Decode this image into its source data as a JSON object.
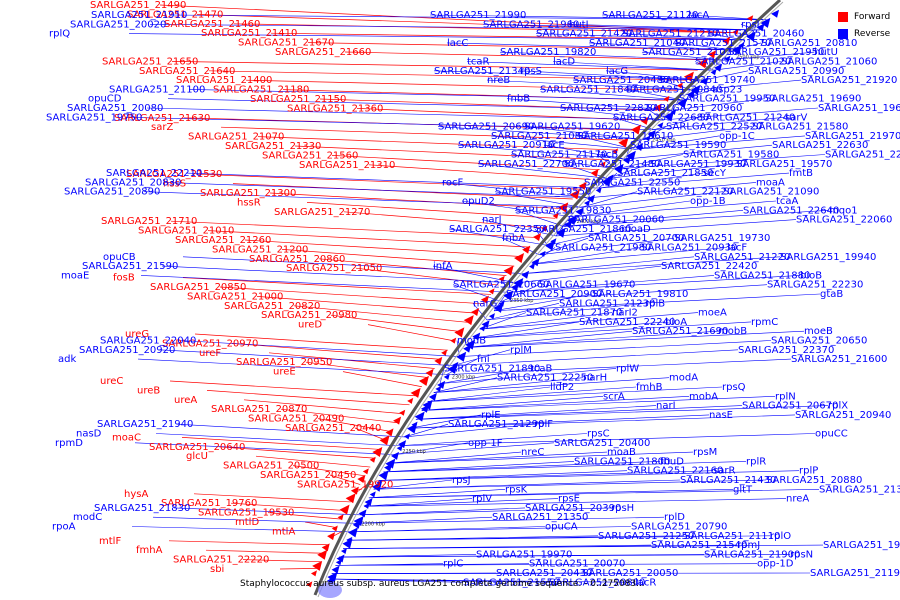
{
  "caption": "Staphylococcus aureus subsp. aureus LGA251 complete genome sequence. - 0..275083...",
  "legend": [
    {
      "label": "Forward",
      "color": "#ff0000"
    },
    {
      "label": "Reverse",
      "color": "#0000ff"
    }
  ],
  "colors": {
    "forward": "#ff0000",
    "reverse": "#0000ff",
    "backbone": "#555555"
  },
  "ticks": [
    "2500 kbp",
    "2450 kbp",
    "2400 kbp",
    "2350 kbp",
    "2300 kbp",
    "2250 kbp",
    "2200 kbp"
  ],
  "forward_labels": [
    "SARLGA251_21490",
    "SARLGA251_21470",
    "SARLGA251_21460",
    "SARLGA251_21410",
    "SARLGA251_21670",
    "SARLGA251_21660",
    "SARLGA251_21650",
    "SARLGA251_21640",
    "SARLGA251_21400",
    "SARLGA251_21180",
    "SARLGA251_21150",
    "SARLGA251_21360",
    "SARLGA251_21630",
    "sarZ",
    "SARLGA251_21070",
    "SARLGA251_21330",
    "SARLGA251_21560",
    "SARLGA251_21310",
    "SARLGA251_21530",
    "hssS",
    "SARLGA251_21300",
    "hssR",
    "SARLGA251_21270",
    "SARLGA251_21710",
    "SARLGA251_21010",
    "SARLGA251_21260",
    "SARLGA251_21200",
    "SARLGA251_20860",
    "SARLGA251_21050",
    "fosB",
    "SARLGA251_20850",
    "SARLGA251_21000",
    "SARLGA251_20820",
    "SARLGA251_20980",
    "ureD",
    "ureG",
    "SARLGA251_20970",
    "ureF",
    "SARLGA251_20950",
    "ureE",
    "ureC",
    "ureB",
    "ureA",
    "SARLGA251_20870",
    "SARLGA251_20490",
    "SARLGA251_20440",
    "moaC",
    "SARLGA251_20640",
    "glcU",
    "SARLGA251_20500",
    "SARLGA251_20450",
    "SARLGA251_19920",
    "hysA",
    "SARLGA251_19760",
    "SARLGA251_19530",
    "mtlD",
    "mtlA",
    "mtlF",
    "fmhA",
    "SARLGA251_22220",
    "sbi"
  ],
  "reverse_labels": [
    "SARLGA251_21990",
    "SARLGA251_21960",
    "SARLGA251_21420",
    "SARLGA251_21040",
    "SARLGA251_21030",
    "SARLGA251_21020",
    "SARLGA251_20990",
    "SARLGA251_21920",
    "SARLGA251_21100",
    "fnbB",
    "SARLGA251_22820",
    "SARLGA251_22680",
    "SARLGA251_22520",
    "opp-1C",
    "SARLGA251_22630",
    "SARLGA251_22300",
    "SARLGA251_22700",
    "SARLGA251_22210",
    "SARLGA251_22550",
    "SARLGA251_22120",
    "opp-1B",
    "SARLGA251_22640",
    "SARLGA251_22060",
    "SARLGA251_22350",
    "fnbA",
    "SARLGA251_21980",
    "opuCB",
    "SARLGA251_22420",
    "SARLGA251_21880",
    "SARLGA251_22230",
    "gtaB",
    "narG",
    "SARLGA251_21870",
    "SARLGA251_22240",
    "SARLGA251_21690",
    "SARLGA251_22040",
    "SARLGA251_22370",
    "SARLGA251_21600",
    "SARLGA251_21890",
    "SARLGA251_22250",
    "lldP2",
    "scrA",
    "narI",
    "nasE",
    "SARLGA251_21940",
    "opuCC",
    "opp-1F",
    "nreC",
    "SARLGA251_21800",
    "SARLGA251_22160",
    "SARLGA251_21430",
    "gltT",
    "nreA",
    "SARLGA251_21830",
    "SARLGA251_21350",
    "opuCA",
    "SARLGA251_21250",
    "SARLGA251_21540",
    "SARLGA251_21900",
    "opp-1D",
    "SARLGA251_21190",
    "SARLGA251_21550",
    "SARLGA251_21910",
    "hutI",
    "SARLGA251_21210",
    "SARLGA251_21570",
    "SARLGA251_21950",
    "SARLGA251_21060",
    "SARLGA251_21340",
    "nreB",
    "SARLGA251_21840",
    "opuCD",
    "SARLGA251_20960",
    "SARLGA251_21240",
    "SARLGA251_21580",
    "SARLGA251_21970",
    "SARLGA251_20910",
    "SARLGA251_21170",
    "SARLGA251_21480",
    "SARLGA251_21850",
    "SARLGA251_20830",
    "SARLGA251_21090",
    "tcaA",
    "mqo1",
    "narJ",
    "SARLGA251_21860",
    "SARLGA251_20700",
    "SARLGA251_20930",
    "SARLGA251_21220",
    "SARLGA251_21590",
    "bioB",
    "SARLGA251_20660",
    "SARLGA251_20900",
    "SARLGA251_21230",
    "narI2",
    "bioA",
    "mobB",
    "SARLGA251_20650",
    "SARLGA251_20920",
    "fni",
    "tcaB",
    "narH",
    "fmhB",
    "mobA",
    "SARLGA251_20670",
    "SARLGA251_20940",
    "SARLGA251_21290",
    "nasD",
    "SARLGA251_20400",
    "moaB",
    "fhuD",
    "sarR",
    "SARLGA251_20880",
    "SARLGA251_21320",
    "rplV",
    "SARLGA251_20390",
    "modC",
    "SARLGA251_20790",
    "SARLGA251_21110",
    "rpmJ",
    "rpsN",
    "rplC",
    "SARLGA251_20430",
    "SARLGA251_20800",
    "SARLGA251_21120",
    "SARLGA251_20020",
    "SARLGA251_20460",
    "SARLGA251_20810",
    "hutU",
    "tcaR",
    "rpsS",
    "SARLGA251_20480",
    "SARLGA251_20840",
    "SARLGA251_19950",
    "SARLGA251_20080",
    "sarV",
    "SARLGA251_20690",
    "SARLGA251_21080",
    "lacE",
    "lacB",
    "SARLGA251_19930",
    "secY",
    "moaA",
    "SARLGA251_20890",
    "opuD2",
    "SARLGA251_19830",
    "SARLGA251_20060",
    "moaD",
    "SARLGA251_19730",
    "lacF",
    "SARLGA251_19940",
    "infA",
    "moaE",
    "SARLGA251_19670",
    "SARLGA251_19810",
    "rplB",
    "moeA",
    "rpmC",
    "moeB",
    "modB",
    "rplM",
    "adk",
    "rplW",
    "modA",
    "rpsQ",
    "rplN",
    "rplX",
    "rplE",
    "rplF",
    "rpsC",
    "rpmD",
    "rpsM",
    "rplR",
    "rplP",
    "rpsJ",
    "rpsK",
    "rpsE",
    "rpsH",
    "rplD",
    "rpoA",
    "rplO",
    "SARLGA251_19980",
    "SARLGA251_19970",
    "SARLGA251_20070",
    "SARLGA251_20050",
    "lacR",
    "lacA",
    "rpsI",
    "rplQ",
    "lacC",
    "SARLGA251_19820",
    "lacD",
    "lacG",
    "SARLGA251_19740",
    "asp23",
    "SARLGA251_19690",
    "SARLGA251_19640",
    "SARLGA251_19750",
    "SARLGA251_19620",
    "SARLGA251_19610",
    "SARLGA251_19590",
    "SARLGA251_19580",
    "SARLGA251_19570",
    "fmtB",
    "rocF",
    "SARLGA251_19550"
  ]
}
